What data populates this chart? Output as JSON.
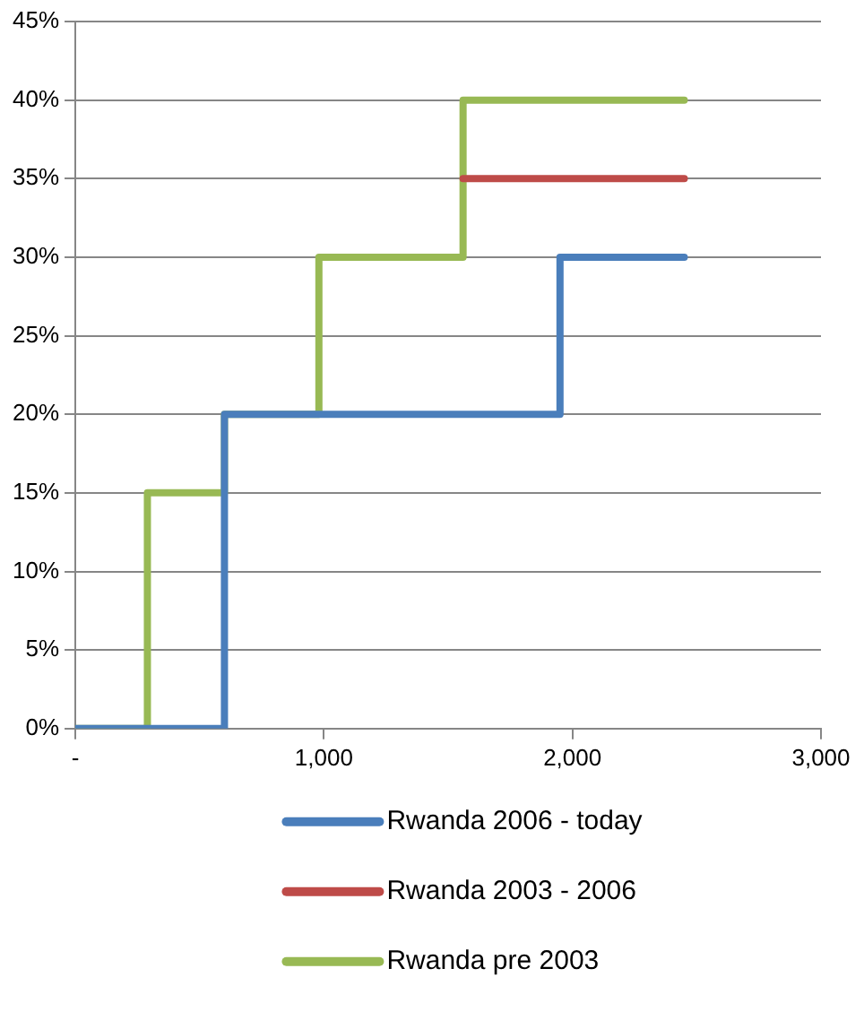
{
  "chart_data": {
    "type": "step",
    "xlim": [
      0,
      3000
    ],
    "xticks": [
      {
        "value": 0,
        "label": "-"
      },
      {
        "value": 1000,
        "label": "1,000"
      },
      {
        "value": 2000,
        "label": "2,000"
      },
      {
        "value": 3000,
        "label": "3,000"
      }
    ],
    "ylim": [
      0,
      45
    ],
    "yticks": [
      {
        "value": 0,
        "label": "0%"
      },
      {
        "value": 5,
        "label": "5%"
      },
      {
        "value": 10,
        "label": "10%"
      },
      {
        "value": 15,
        "label": "15%"
      },
      {
        "value": 20,
        "label": "20%"
      },
      {
        "value": 25,
        "label": "25%"
      },
      {
        "value": 30,
        "label": "30%"
      },
      {
        "value": 35,
        "label": "35%"
      },
      {
        "value": 40,
        "label": "40%"
      },
      {
        "value": 45,
        "label": "45%"
      }
    ],
    "grid": "y",
    "legend": "bottom",
    "marker": "none",
    "line_style": "solid",
    "series": [
      {
        "name": "Rwanda 2006 - today",
        "color": "#4a7ebb",
        "x": [
          0,
          600,
          1950,
          2450
        ],
        "values": [
          0,
          20,
          30,
          30
        ]
      },
      {
        "name": "Rwanda 2003 - 2006",
        "color": "#be4b48",
        "x": [
          1560,
          2450
        ],
        "values": [
          35,
          35
        ]
      },
      {
        "name": "Rwanda pre 2003",
        "color": "#98b954",
        "x": [
          0,
          290,
          600,
          980,
          1560,
          2450
        ],
        "values": [
          0,
          15,
          20,
          30,
          40,
          40
        ]
      }
    ]
  }
}
